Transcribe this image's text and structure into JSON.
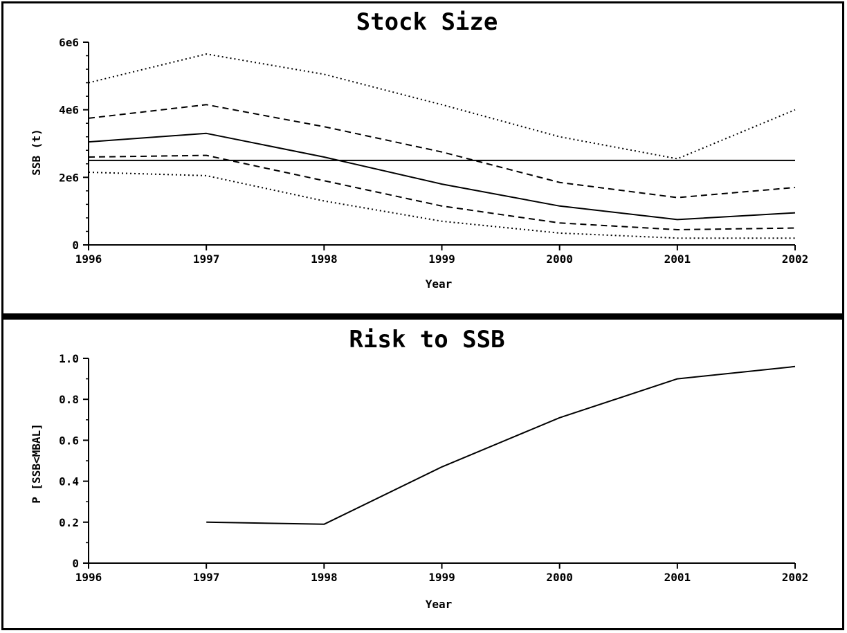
{
  "chart_data": [
    {
      "type": "line",
      "title": "Stock Size",
      "xlabel": "Year",
      "ylabel": "SSB (t)",
      "x": [
        1996,
        1997,
        1998,
        1999,
        2000,
        2001,
        2002
      ],
      "xlim": [
        1996,
        2002
      ],
      "ylim": [
        0,
        6000000
      ],
      "yticks": [
        0,
        2000000,
        4000000,
        6000000
      ],
      "ytick_labels": [
        "0",
        "2e6",
        "4e6",
        "6e6"
      ],
      "grid": false,
      "series": [
        {
          "style": "dotted",
          "values": [
            4800000,
            5650000,
            5050000,
            4150000,
            3200000,
            2550000,
            4000000
          ]
        },
        {
          "style": "dashed",
          "values": [
            3750000,
            4150000,
            3500000,
            2750000,
            1850000,
            1400000,
            1700000
          ]
        },
        {
          "style": "solid",
          "values": [
            3050000,
            3300000,
            2600000,
            1800000,
            1150000,
            750000,
            950000
          ]
        },
        {
          "style": "dashed",
          "values": [
            2600000,
            2650000,
            1900000,
            1150000,
            650000,
            450000,
            500000
          ]
        },
        {
          "style": "dotted",
          "values": [
            2150000,
            2050000,
            1300000,
            700000,
            350000,
            200000,
            200000
          ]
        },
        {
          "style": "solid",
          "values": [
            2500000,
            2500000,
            2500000,
            2500000,
            2500000,
            2500000,
            2500000
          ]
        }
      ]
    },
    {
      "type": "line",
      "title": "Risk to SSB",
      "xlabel": "Year",
      "ylabel": "P [SSB<MBAL]",
      "x": [
        1997,
        1998,
        1999,
        2000,
        2001,
        2002
      ],
      "xlim": [
        1996,
        2002
      ],
      "ylim": [
        0,
        1.0
      ],
      "yticks": [
        0,
        0.2,
        0.4,
        0.6,
        0.8,
        1.0
      ],
      "ytick_labels": [
        "0",
        "0.2",
        "0.4",
        "0.6",
        "0.8",
        "1.0"
      ],
      "grid": false,
      "series": [
        {
          "style": "solid",
          "values": [
            0.2,
            0.19,
            0.47,
            0.71,
            0.9,
            0.96
          ]
        }
      ]
    }
  ]
}
